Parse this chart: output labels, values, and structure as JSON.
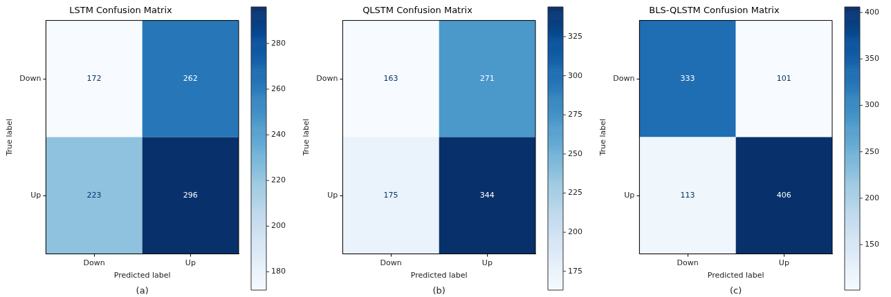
{
  "chart_data": [
    {
      "type": "heatmap",
      "title": "LSTM Confusion Matrix",
      "xlabel": "Predicted label",
      "ylabel": "True label",
      "categories": [
        "Down",
        "Up"
      ],
      "y_categories": [
        "Down",
        "Up"
      ],
      "cells": [
        [
          172,
          262
        ],
        [
          223,
          296
        ]
      ],
      "data_labels": true,
      "clim": [
        172,
        296
      ],
      "cticks": [
        180,
        200,
        220,
        240,
        260,
        280
      ],
      "annotations": [
        "(a)"
      ]
    },
    {
      "type": "heatmap",
      "title": "QLSTM Confusion Matrix",
      "xlabel": "Predicted label",
      "ylabel": "True label",
      "categories": [
        "Down",
        "Up"
      ],
      "y_categories": [
        "Down",
        "Up"
      ],
      "cells": [
        [
          163,
          271
        ],
        [
          175,
          344
        ]
      ],
      "data_labels": true,
      "clim": [
        163,
        344
      ],
      "cticks": [
        175,
        200,
        225,
        250,
        275,
        300,
        325
      ],
      "annotations": [
        "(b)"
      ]
    },
    {
      "type": "heatmap",
      "title": "BLS-QLSTM Confusion Matrix",
      "xlabel": "Predicted label",
      "ylabel": "True label",
      "categories": [
        "Down",
        "Up"
      ],
      "y_categories": [
        "Down",
        "Up"
      ],
      "cells": [
        [
          333,
          101
        ],
        [
          113,
          406
        ]
      ],
      "data_labels": true,
      "clim": [
        101,
        406
      ],
      "cticks": [
        150,
        200,
        250,
        300,
        350,
        400
      ],
      "annotations": [
        "(c)"
      ]
    }
  ]
}
